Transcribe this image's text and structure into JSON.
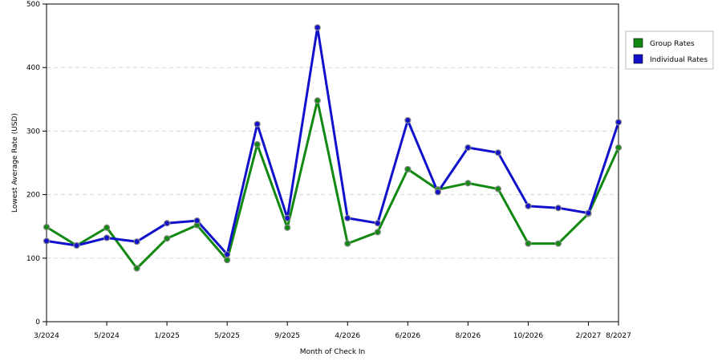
{
  "chart_data": {
    "type": "line",
    "title": "",
    "xlabel": "Month of Check In",
    "ylabel": "Lowest Average Rate (USD)",
    "ylim": [
      0,
      500
    ],
    "yticks": [
      0,
      100,
      200,
      300,
      400,
      500
    ],
    "grid": true,
    "legend_position": "right",
    "x_tick_labels": [
      "3/2024",
      "5/2024",
      "1/2025",
      "5/2025",
      "9/2025",
      "4/2026",
      "6/2026",
      "8/2026",
      "10/2026",
      "2/2027",
      "8/2027"
    ],
    "x_tick_index": [
      0,
      2,
      4,
      6,
      8,
      10,
      12,
      14,
      16,
      18,
      19
    ],
    "series": [
      {
        "name": "Group Rates",
        "color": "#118811",
        "values": [
          149,
          120,
          148,
          84,
          131,
          152,
          97,
          279,
          148,
          348,
          123,
          141,
          240,
          208,
          218,
          209,
          123,
          123,
          170,
          274
        ]
      },
      {
        "name": "Individual Rates",
        "color": "#1111cc",
        "values": [
          127,
          120,
          132,
          126,
          155,
          159,
          106,
          311,
          163,
          463,
          163,
          155,
          317,
          204,
          274,
          266,
          182,
          179,
          171,
          314
        ]
      }
    ]
  }
}
